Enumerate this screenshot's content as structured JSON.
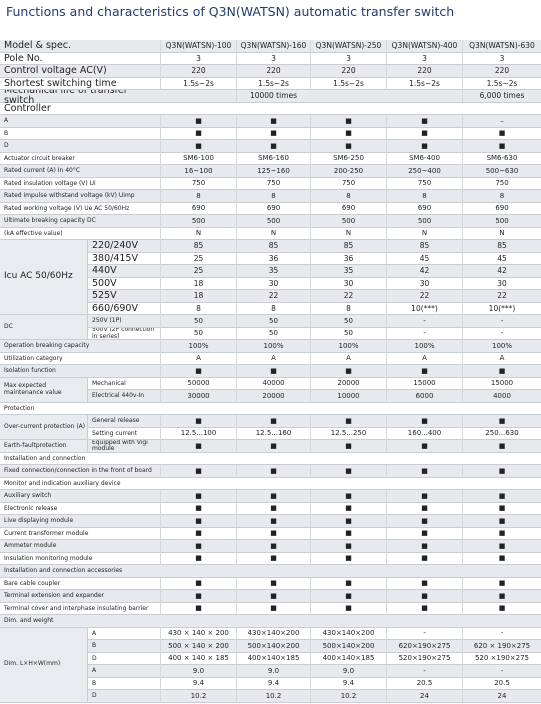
{
  "header": {
    "title": "Functions and characteristics of  Q3N(WATSN) automatic transfer switch"
  },
  "table": {
    "items": [
      {
        "label": "Model & spec.",
        "values": [
          "Q3N(WATSN)-100",
          "Q3N(WATSN)-160",
          "Q3N(WATSN)-250",
          "Q3N(WATSN)-400",
          "Q3N(WATSN)-630"
        ]
      },
      {
        "label": "Pole No.",
        "values": [
          "3",
          "3",
          "3",
          "3",
          "3"
        ]
      },
      {
        "label": "Control voltage AC(V)",
        "values": [
          "220",
          "220",
          "220",
          "220",
          "220"
        ]
      },
      {
        "label": "Shortest switching time",
        "values": [
          "1.5s~2s",
          "1.5s~2s",
          "1.5s~2s",
          "1.5s~2s",
          "1.5s~2s"
        ]
      },
      {
        "label": "Mechanical life of transfer switch",
        "values": [
          null,
          "10000 times",
          null,
          null,
          "6,000 times"
        ]
      },
      {
        "label": "Controller"
      },
      {
        "label": "A",
        "values": [
          "■",
          "■",
          "■",
          "■",
          "–"
        ]
      },
      {
        "label": "B",
        "values": [
          "■",
          "■",
          "■",
          "■",
          "■"
        ]
      },
      {
        "label": "D",
        "values": [
          "■",
          "■",
          "■",
          "■",
          "■"
        ]
      },
      {
        "label": "Actuator circuit breaker",
        "values": [
          "SM6-100",
          "SM6-160",
          "SM6-250",
          "SM6-400",
          "SM6-630"
        ]
      },
      {
        "label": "Rated current (A)  In  40°C",
        "values": [
          "16~100",
          "125~160",
          "200-250",
          "250~400",
          "500~630"
        ]
      },
      {
        "label": "Rated insulation voltage (V)  Ui",
        "values": [
          "750",
          "750",
          "750",
          "750",
          "750"
        ]
      },
      {
        "label": "Rated impulse withstand voltage (kV)  Uimp",
        "values": [
          "8",
          "8",
          "8",
          "8",
          "8"
        ]
      },
      {
        "label": "Rated working voltage (V)  Ue AC 50/60Hz",
        "values": [
          "690",
          "690",
          "690",
          "690",
          "690"
        ]
      },
      {
        "label": "Ultimate breaking capacity DC",
        "values": [
          "500",
          "500",
          "500",
          "500",
          "500"
        ]
      },
      {
        "label": "(kA effective value)",
        "values": [
          "N",
          "N",
          "N",
          "N",
          "N"
        ]
      },
      {
        "label": "Icu AC 50/60Hz",
        "rows": [
          {
            "label": "220/240V",
            "values": [
              "85",
              "85",
              "85",
              "85",
              "85"
            ]
          },
          {
            "label": "380/415V",
            "values": [
              "25",
              "36",
              "36",
              "45",
              "45"
            ]
          },
          {
            "label": "440V",
            "values": [
              "25",
              "35",
              "35",
              "42",
              "42"
            ]
          },
          {
            "label": "500V",
            "values": [
              "18",
              "30",
              "30",
              "30",
              "30"
            ]
          },
          {
            "label": "525V",
            "values": [
              "18",
              "22",
              "22",
              "22",
              "22"
            ]
          },
          {
            "label": "660/690V",
            "values": [
              "8",
              "8",
              "8",
              "10(***)",
              "10(***)"
            ]
          }
        ]
      },
      {
        "label": "DC",
        "rows": [
          {
            "label": "250V (1P)",
            "values": [
              "50",
              "50",
              "50",
              "-",
              "-"
            ]
          },
          {
            "label": "500V (2P connection in series)",
            "values": [
              "50",
              "50",
              "50",
              "-",
              "-"
            ]
          }
        ]
      },
      {
        "label": "Operation breaking capacity",
        "values": [
          "100%",
          "100%",
          "100%",
          "100%",
          "100%"
        ]
      },
      {
        "label": "Utilization category",
        "values": [
          "A",
          "A",
          "A",
          "A",
          "A"
        ]
      },
      {
        "label": "Isolation function",
        "values": [
          "■",
          "■",
          "■",
          "■",
          "■"
        ]
      },
      {
        "label": "Max expected maintenance value",
        "rows": [
          {
            "label": "Mechanical",
            "values": [
              "50000",
              "40000",
              "20000",
              "15000",
              "15000"
            ]
          },
          {
            "label": "Electrical 440v-In",
            "values": [
              "30000",
              "20000",
              "10000",
              "6000",
              "4000"
            ]
          }
        ]
      },
      {
        "label": "Protection"
      },
      {
        "label": "Over-current protection (A)",
        "rows": [
          {
            "label": "General release",
            "values": [
              "■",
              "■",
              "■",
              "■",
              "■"
            ]
          },
          {
            "label": "Setting current",
            "values": [
              "12.5...100",
              "12.5...160",
              "12.5...250",
              "160...400",
              "250...630"
            ]
          }
        ]
      },
      {
        "label": "Earth-faultprotection",
        "rows": [
          {
            "label": "Equipped with Vigi module",
            "values": [
              "■",
              "■",
              "■",
              "■",
              "■"
            ]
          }
        ]
      },
      {
        "label": "Installation and connection"
      },
      {
        "label": "Fixed connection/connection in the front of board",
        "values": [
          "■",
          "■",
          "■",
          "■",
          "■"
        ]
      },
      {
        "label": "Monitor and indication auxiliary device"
      },
      {
        "label": "Auxiliary switch",
        "values": [
          "■",
          "■",
          "■",
          "■",
          "■"
        ]
      },
      {
        "label": "Electronic release",
        "values": [
          "■",
          "■",
          "■",
          "■",
          "■"
        ]
      },
      {
        "label": "Live displaying module",
        "values": [
          "■",
          "■",
          "■",
          "■",
          "■"
        ]
      },
      {
        "label": "Current transformer module",
        "values": [
          "■",
          "■",
          "■",
          "■",
          "■"
        ]
      },
      {
        "label": "Ammeter module",
        "values": [
          "■",
          "■",
          "■",
          "■",
          "■"
        ]
      },
      {
        "label": "Insulation monitoring module",
        "values": [
          "■",
          "■",
          "■",
          "■",
          "■"
        ]
      },
      {
        "label": "Installation and connection accessories"
      },
      {
        "label": "Bare cable coupler",
        "values": [
          "■",
          "■",
          "■",
          "■",
          "■"
        ]
      },
      {
        "label": "Terminal extension and expander",
        "values": [
          "■",
          "■",
          "■",
          "■",
          "■"
        ]
      },
      {
        "label": "Terminal cover and interphase insulating barrier",
        "values": [
          "■",
          "■",
          "■",
          "■",
          "■"
        ]
      },
      {
        "label": "Dim. and weight"
      },
      {
        "label": "Dim. L×H×W(mm)",
        "rows": [
          {
            "label": "A",
            "values": [
              "430 × 140 × 200",
              "430×140×200",
              "430×140×200",
              "-",
              "-"
            ]
          },
          {
            "label": "B",
            "values": [
              "500 × 140 × 200",
              "500×140×200",
              "500×140×200",
              "620×190×275",
              "620 × 190×275"
            ]
          },
          {
            "label": "D",
            "values": [
              "400 × 140 × 185",
              "400×140×185",
              "400×140×185",
              "520×190×275",
              "520 ×190×275"
            ]
          },
          {
            "label": "A",
            "values": [
              "9.0",
              "9.0",
              "9.0",
              "-",
              "-"
            ]
          },
          {
            "label": "B",
            "values": [
              "9.4",
              "9.4",
              "9.4",
              "20.5",
              "20.5"
            ]
          },
          {
            "label": "D",
            "values": [
              "10.2",
              "10.2",
              "10.2",
              "24",
              "24"
            ]
          }
        ]
      }
    ]
  }
}
